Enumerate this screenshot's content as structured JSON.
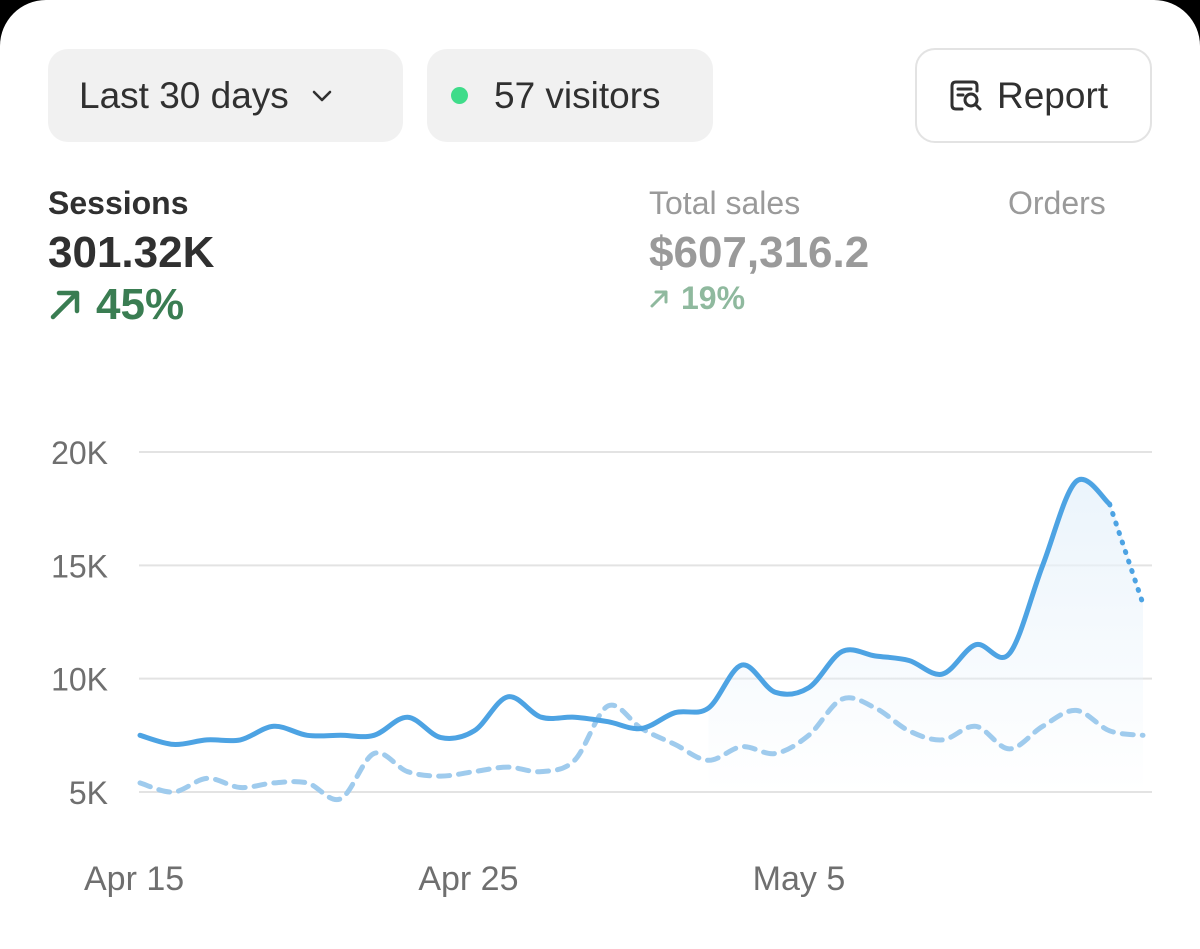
{
  "filters": {
    "range_label": "Last 30 days",
    "visitors_label": "57 visitors",
    "report_label": "Report"
  },
  "metrics": {
    "sessions": {
      "label": "Sessions",
      "value": "301.32K",
      "change": "45%"
    },
    "total_sales": {
      "label": "Total sales",
      "value": "$607,316.2",
      "change": "19%"
    },
    "orders": {
      "label": "Orders"
    }
  },
  "colors": {
    "primary_line": "#4da3e3",
    "comparison_line": "#9fcbed",
    "positive": "#3a7d52",
    "live_dot": "#3fdc8a"
  },
  "icons": {
    "range_dropdown": "chevron-down-icon",
    "live_indicator": "dot-icon",
    "report": "report-search-icon",
    "trend": "arrow-up-right-icon"
  },
  "chart_data": {
    "type": "line",
    "ylim": [
      5000,
      20000
    ],
    "y_ticks": [
      {
        "value": 20000,
        "label": "20K"
      },
      {
        "value": 15000,
        "label": "15K"
      },
      {
        "value": 10000,
        "label": "10K"
      },
      {
        "value": 5000,
        "label": "5K"
      }
    ],
    "x_range": [
      0,
      30
    ],
    "x_ticks": [
      {
        "day": 0,
        "label": "Apr 15"
      },
      {
        "day": 10,
        "label": "Apr 25"
      },
      {
        "day": 20,
        "label": "May 5"
      }
    ],
    "grid": true,
    "series": [
      {
        "style": "solid",
        "values": [
          [
            0,
            7500
          ],
          [
            1,
            7100
          ],
          [
            2,
            7300
          ],
          [
            3,
            7300
          ],
          [
            4,
            7900
          ],
          [
            5,
            7500
          ],
          [
            6,
            7500
          ],
          [
            7,
            7500
          ],
          [
            8,
            8300
          ],
          [
            9,
            7400
          ],
          [
            10,
            7700
          ],
          [
            11,
            9200
          ],
          [
            12,
            8300
          ],
          [
            13,
            8300
          ],
          [
            14,
            8100
          ],
          [
            15,
            7800
          ],
          [
            16,
            8500
          ],
          [
            17,
            8700
          ],
          [
            18,
            10600
          ],
          [
            19,
            9400
          ],
          [
            20,
            9600
          ],
          [
            21,
            11200
          ],
          [
            22,
            11000
          ],
          [
            23,
            10800
          ],
          [
            24,
            10200
          ],
          [
            25,
            11500
          ],
          [
            26,
            11100
          ],
          [
            27,
            15000
          ],
          [
            28,
            18700
          ],
          [
            29,
            17700
          ]
        ],
        "projection": [
          [
            29,
            17700
          ],
          [
            30,
            13300
          ]
        ]
      },
      {
        "style": "dashed",
        "values": [
          [
            0,
            5400
          ],
          [
            1,
            5000
          ],
          [
            2,
            5600
          ],
          [
            3,
            5200
          ],
          [
            4,
            5400
          ],
          [
            5,
            5400
          ],
          [
            6,
            4700
          ],
          [
            7,
            6700
          ],
          [
            8,
            5900
          ],
          [
            9,
            5700
          ],
          [
            10,
            5900
          ],
          [
            11,
            6100
          ],
          [
            12,
            5900
          ],
          [
            13,
            6400
          ],
          [
            14,
            8800
          ],
          [
            15,
            7800
          ],
          [
            16,
            7100
          ],
          [
            17,
            6400
          ],
          [
            18,
            7000
          ],
          [
            19,
            6700
          ],
          [
            20,
            7500
          ],
          [
            21,
            9100
          ],
          [
            22,
            8700
          ],
          [
            23,
            7700
          ],
          [
            24,
            7300
          ],
          [
            25,
            7900
          ],
          [
            26,
            6900
          ],
          [
            27,
            7900
          ],
          [
            28,
            8600
          ],
          [
            29,
            7700
          ],
          [
            30,
            7500
          ]
        ]
      }
    ]
  }
}
